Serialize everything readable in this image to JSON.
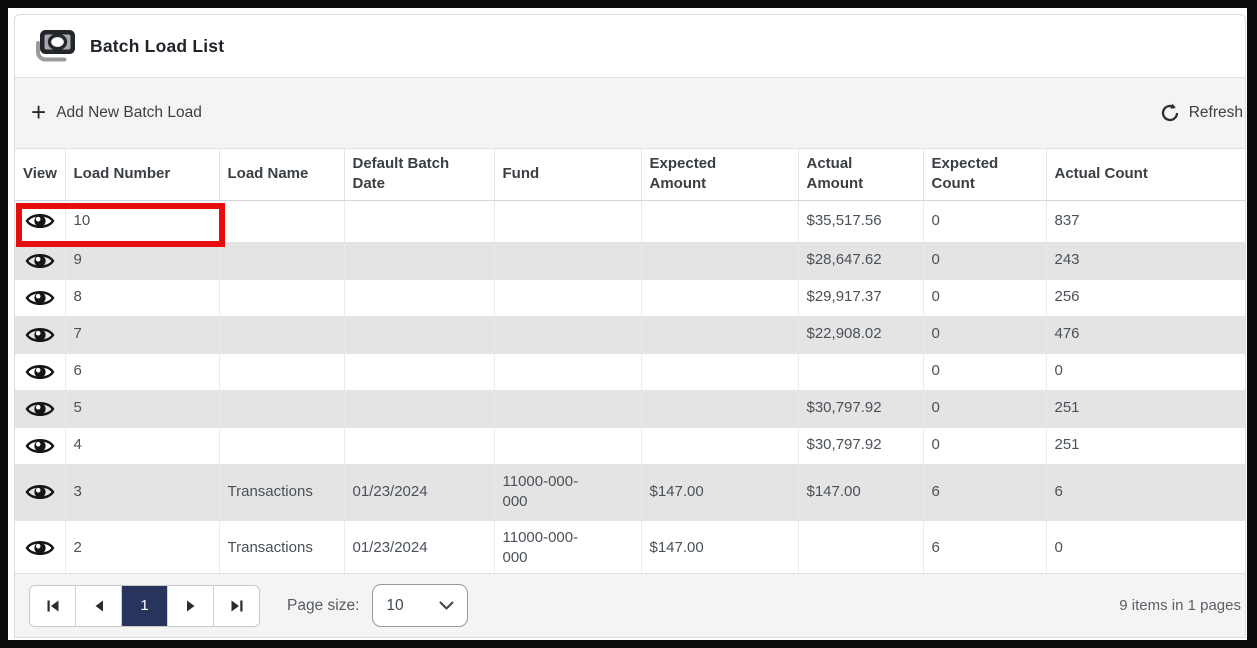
{
  "header": {
    "title": "Batch Load List",
    "icon": "cash-icon"
  },
  "toolbar": {
    "add_button": {
      "icon": "plus-icon",
      "label": "Add New Batch Load"
    },
    "refresh_button": {
      "icon": "refresh-icon",
      "label": "Refresh"
    }
  },
  "table": {
    "view_icon": "eye-icon",
    "columns": [
      {
        "key": "view",
        "label": "View"
      },
      {
        "key": "load_number",
        "label": "Load Number"
      },
      {
        "key": "load_name",
        "label": "Load Name"
      },
      {
        "key": "default_batch_date",
        "label": "Default Batch Date"
      },
      {
        "key": "fund",
        "label": "Fund"
      },
      {
        "key": "expected_amount",
        "label": "Expected Amount"
      },
      {
        "key": "actual_amount",
        "label": "Actual Amount"
      },
      {
        "key": "expected_count",
        "label": "Expected Count"
      },
      {
        "key": "actual_count",
        "label": "Actual Count"
      }
    ],
    "rows": [
      {
        "load_number": "10",
        "load_name": "",
        "default_batch_date": "",
        "fund": "",
        "expected_amount": "",
        "actual_amount": "$35,517.56",
        "expected_count": "0",
        "actual_count": "837",
        "highlighted": true
      },
      {
        "load_number": "9",
        "load_name": "",
        "default_batch_date": "",
        "fund": "",
        "expected_amount": "",
        "actual_amount": "$28,647.62",
        "expected_count": "0",
        "actual_count": "243"
      },
      {
        "load_number": "8",
        "load_name": "",
        "default_batch_date": "",
        "fund": "",
        "expected_amount": "",
        "actual_amount": "$29,917.37",
        "expected_count": "0",
        "actual_count": "256"
      },
      {
        "load_number": "7",
        "load_name": "",
        "default_batch_date": "",
        "fund": "",
        "expected_amount": "",
        "actual_amount": "$22,908.02",
        "expected_count": "0",
        "actual_count": "476"
      },
      {
        "load_number": "6",
        "load_name": "",
        "default_batch_date": "",
        "fund": "",
        "expected_amount": "",
        "actual_amount": "",
        "expected_count": "0",
        "actual_count": "0"
      },
      {
        "load_number": "5",
        "load_name": "",
        "default_batch_date": "",
        "fund": "",
        "expected_amount": "",
        "actual_amount": "$30,797.92",
        "expected_count": "0",
        "actual_count": "251"
      },
      {
        "load_number": "4",
        "load_name": "",
        "default_batch_date": "",
        "fund": "",
        "expected_amount": "",
        "actual_amount": "$30,797.92",
        "expected_count": "0",
        "actual_count": "251"
      },
      {
        "load_number": "3",
        "load_name": "Transactions",
        "default_batch_date": "01/23/2024",
        "fund": "11000-000-000",
        "expected_amount": "$147.00",
        "actual_amount": "$147.00",
        "expected_count": "6",
        "actual_count": "6"
      },
      {
        "load_number": "2",
        "load_name": "Transactions",
        "default_batch_date": "01/23/2024",
        "fund": "11000-000-000",
        "expected_amount": "$147.00",
        "actual_amount": "",
        "expected_count": "6",
        "actual_count": "0"
      }
    ]
  },
  "pager": {
    "first_icon": "first-page-icon",
    "prev_icon": "prev-page-icon",
    "next_icon": "next-page-icon",
    "last_icon": "last-page-icon",
    "current_page": "1",
    "page_size_label": "Page size:",
    "page_size_value": "10",
    "summary": "9 items in 1 pages"
  },
  "annotation": {
    "highlighted_load_number": "10",
    "highlight_color": "#e60d0d"
  },
  "colors": {
    "active_page_bg": "#28345c",
    "row_stripe": "#e4e4e4",
    "toolbar_bg": "#f4f4f4",
    "frame": "#0b0b0b"
  }
}
